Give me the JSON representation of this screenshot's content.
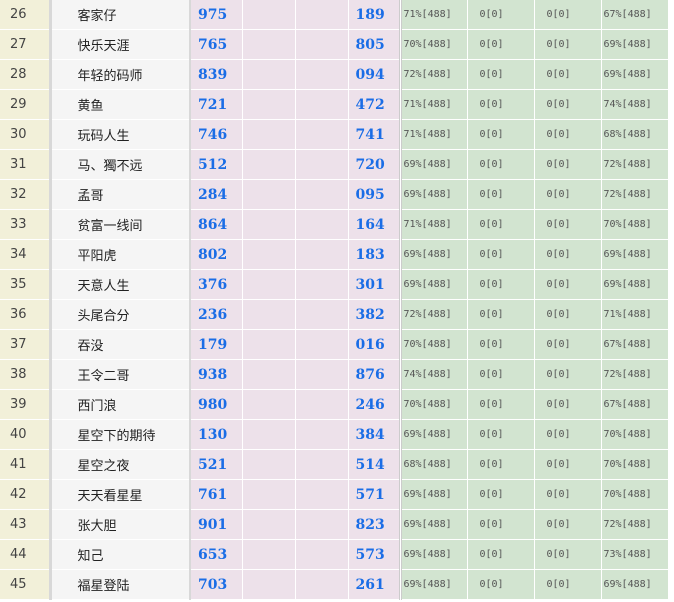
{
  "rows": [
    {
      "rank": "26",
      "name": "客家仔",
      "a": "975",
      "b": "189",
      "p1": "71%[488]",
      "p2": "0[0]",
      "p3": "0[0]",
      "p4": "67%[488]"
    },
    {
      "rank": "27",
      "name": "快乐天涯",
      "a": "765",
      "b": "805",
      "p1": "70%[488]",
      "p2": "0[0]",
      "p3": "0[0]",
      "p4": "69%[488]"
    },
    {
      "rank": "28",
      "name": "年轻的码师",
      "a": "839",
      "b": "094",
      "p1": "72%[488]",
      "p2": "0[0]",
      "p3": "0[0]",
      "p4": "69%[488]"
    },
    {
      "rank": "29",
      "name": "黄鱼",
      "a": "721",
      "b": "472",
      "p1": "71%[488]",
      "p2": "0[0]",
      "p3": "0[0]",
      "p4": "74%[488]"
    },
    {
      "rank": "30",
      "name": "玩码人生",
      "a": "746",
      "b": "741",
      "p1": "71%[488]",
      "p2": "0[0]",
      "p3": "0[0]",
      "p4": "68%[488]"
    },
    {
      "rank": "31",
      "name": "马、獨不远",
      "a": "512",
      "b": "720",
      "p1": "69%[488]",
      "p2": "0[0]",
      "p3": "0[0]",
      "p4": "72%[488]"
    },
    {
      "rank": "32",
      "name": "孟哥",
      "a": "284",
      "b": "095",
      "p1": "69%[488]",
      "p2": "0[0]",
      "p3": "0[0]",
      "p4": "72%[488]"
    },
    {
      "rank": "33",
      "name": "贫富一线间",
      "a": "864",
      "b": "164",
      "p1": "71%[488]",
      "p2": "0[0]",
      "p3": "0[0]",
      "p4": "70%[488]"
    },
    {
      "rank": "34",
      "name": "平阳虎",
      "a": "802",
      "b": "183",
      "p1": "69%[488]",
      "p2": "0[0]",
      "p3": "0[0]",
      "p4": "69%[488]"
    },
    {
      "rank": "35",
      "name": "天意人生",
      "a": "376",
      "b": "301",
      "p1": "69%[488]",
      "p2": "0[0]",
      "p3": "0[0]",
      "p4": "69%[488]"
    },
    {
      "rank": "36",
      "name": "头尾合分",
      "a": "236",
      "b": "382",
      "p1": "72%[488]",
      "p2": "0[0]",
      "p3": "0[0]",
      "p4": "71%[488]"
    },
    {
      "rank": "37",
      "name": "吞没",
      "a": "179",
      "b": "016",
      "p1": "70%[488]",
      "p2": "0[0]",
      "p3": "0[0]",
      "p4": "67%[488]"
    },
    {
      "rank": "38",
      "name": "王令二哥",
      "a": "938",
      "b": "876",
      "p1": "74%[488]",
      "p2": "0[0]",
      "p3": "0[0]",
      "p4": "72%[488]"
    },
    {
      "rank": "39",
      "name": "西门浪",
      "a": "980",
      "b": "246",
      "p1": "70%[488]",
      "p2": "0[0]",
      "p3": "0[0]",
      "p4": "67%[488]"
    },
    {
      "rank": "40",
      "name": "星空下的期待",
      "a": "130",
      "b": "384",
      "p1": "69%[488]",
      "p2": "0[0]",
      "p3": "0[0]",
      "p4": "70%[488]"
    },
    {
      "rank": "41",
      "name": "星空之夜",
      "a": "521",
      "b": "514",
      "p1": "68%[488]",
      "p2": "0[0]",
      "p3": "0[0]",
      "p4": "70%[488]"
    },
    {
      "rank": "42",
      "name": "天天看星星",
      "a": "761",
      "b": "571",
      "p1": "69%[488]",
      "p2": "0[0]",
      "p3": "0[0]",
      "p4": "70%[488]"
    },
    {
      "rank": "43",
      "name": "张大胆",
      "a": "901",
      "b": "823",
      "p1": "69%[488]",
      "p2": "0[0]",
      "p3": "0[0]",
      "p4": "72%[488]"
    },
    {
      "rank": "44",
      "name": "知己",
      "a": "653",
      "b": "573",
      "p1": "69%[488]",
      "p2": "0[0]",
      "p3": "0[0]",
      "p4": "73%[488]"
    },
    {
      "rank": "45",
      "name": "福星登陆",
      "a": "703",
      "b": "261",
      "p1": "69%[488]",
      "p2": "0[0]",
      "p3": "0[0]",
      "p4": "69%[488]"
    }
  ]
}
